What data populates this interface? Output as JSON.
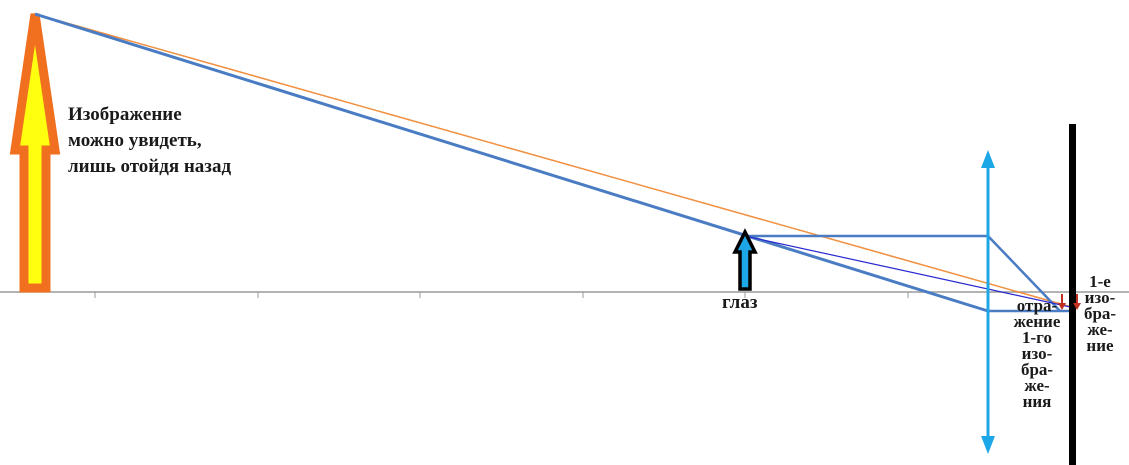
{
  "note_lines": [
    "Изображение",
    "можно увидеть,",
    "лишь отойдя назад"
  ],
  "eye_label": "глаз",
  "reflection_label_lines": [
    "отра-",
    "жение",
    "1-го",
    "изо-",
    "бра-",
    "же-",
    "ния"
  ],
  "first_image_label_lines": [
    "1-е",
    "изо-",
    "бра-",
    "же-",
    "ние"
  ],
  "colors": {
    "ray_blue": "#4a7cc4",
    "ray_orange": "#f09040",
    "ray_violet": "#2828d0",
    "lens_cyan": "#1ea7e6",
    "big_arrow_fill": "#ffff10",
    "big_arrow_stroke": "#f07020",
    "screen_black": "#000000",
    "axis_gray": "#9a9a9a"
  }
}
